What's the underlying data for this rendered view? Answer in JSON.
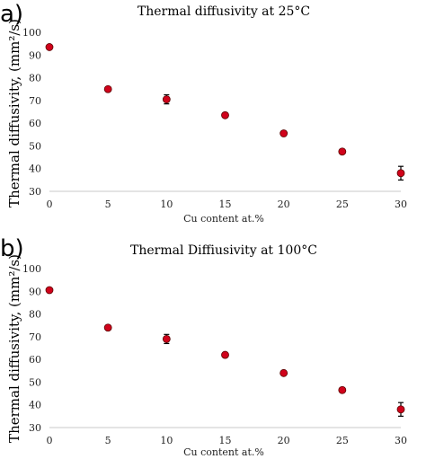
{
  "chart_data": [
    {
      "panel": "a)",
      "type": "scatter",
      "title": "Thermal diffusivity at 25°C",
      "xlabel": "Cu content at.%",
      "ylabel": "Thermal diffusivity, (mm²/s)",
      "xlim": [
        0,
        30
      ],
      "ylim": [
        30,
        100
      ],
      "xticks": [
        0,
        5,
        10,
        15,
        20,
        25,
        30
      ],
      "yticks": [
        30,
        40,
        50,
        60,
        70,
        80,
        90,
        100
      ],
      "grid": false,
      "marker_color": "#d0021b",
      "series": [
        {
          "x": [
            0,
            5,
            10,
            15,
            20,
            25,
            30
          ],
          "y": [
            93.5,
            75,
            70.5,
            63.5,
            55.5,
            47.5,
            38
          ],
          "yerr": [
            0,
            0,
            2,
            0,
            0,
            0,
            3
          ]
        }
      ]
    },
    {
      "panel": "b)",
      "type": "scatter",
      "title": "Thermal Diffiusivity at 100°C",
      "xlabel": "Cu content at.%",
      "ylabel": "Thermal diffusivity, (mm²/s)",
      "xlim": [
        0,
        30
      ],
      "ylim": [
        30,
        100
      ],
      "xticks": [
        0,
        5,
        10,
        15,
        20,
        25,
        30
      ],
      "yticks": [
        30,
        40,
        50,
        60,
        70,
        80,
        90,
        100
      ],
      "grid": false,
      "marker_color": "#d0021b",
      "series": [
        {
          "x": [
            0,
            5,
            10,
            15,
            20,
            25,
            30
          ],
          "y": [
            90.5,
            74,
            69,
            62,
            54,
            46.5,
            38
          ],
          "yerr": [
            0,
            0,
            2,
            0,
            0,
            0,
            3
          ]
        }
      ]
    }
  ]
}
